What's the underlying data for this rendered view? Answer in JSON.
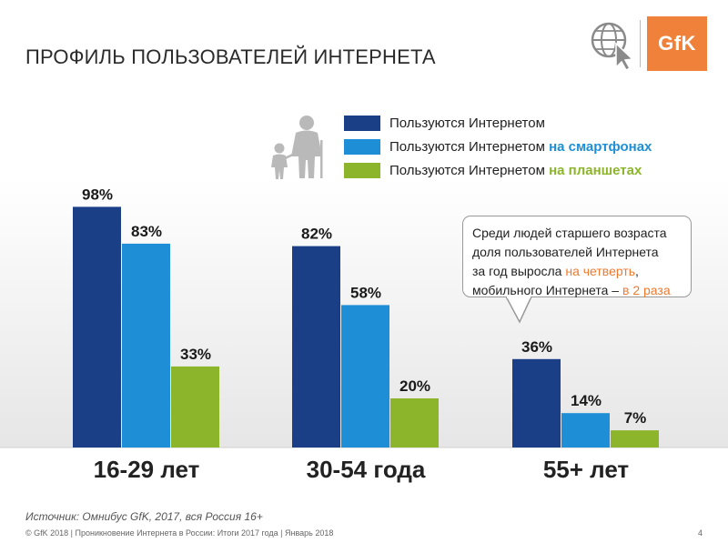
{
  "title": "ПРОФИЛЬ ПОЛЬЗОВАТЕЛЕЙ ИНТЕРНЕТА",
  "logo": {
    "brand": "GfK",
    "icons": [
      "globe-icon",
      "cursor-icon"
    ]
  },
  "legend": [
    {
      "text": "Пользуются Интернетом",
      "highlight": "",
      "color": "#1a3f87"
    },
    {
      "text": "Пользуются Интернетом ",
      "highlight": "на смартфонах",
      "color": "#1e8fd6"
    },
    {
      "text": "Пользуются Интернетом ",
      "highlight": "на планшетах",
      "color": "#8db52b"
    }
  ],
  "callout": {
    "line1": "Среди людей старшего возраста",
    "line2": "доля пользователей Интернета",
    "line3_pre": "за год выросла ",
    "line3_hl": "на четверть",
    "line3_post": ",",
    "line4_pre": "мобильного Интернета – ",
    "line4_hl": "в 2 раза"
  },
  "source": "Источник: Омнибус GfK, 2017, вся Россия 16+",
  "footer": "© GfK 2018 | Проникновение Интернета в России: Итоги 2017 года | Январь 2018",
  "page_number": "4",
  "chart_data": {
    "type": "bar",
    "categories": [
      "16-29 лет",
      "30-54 года",
      "55+ лет"
    ],
    "series": [
      {
        "name": "Пользуются Интернетом",
        "values": [
          98,
          82,
          36
        ],
        "color": "#1a3f87"
      },
      {
        "name": "Пользуются Интернетом на смартфонах",
        "values": [
          83,
          58,
          14
        ],
        "color": "#1e8fd6"
      },
      {
        "name": "Пользуются Интернетом на планшетах",
        "values": [
          33,
          20,
          7
        ],
        "color": "#8db52b"
      }
    ],
    "value_suffix": "%",
    "ylim": [
      0,
      100
    ],
    "legend_position": "top-right",
    "grid": false
  }
}
